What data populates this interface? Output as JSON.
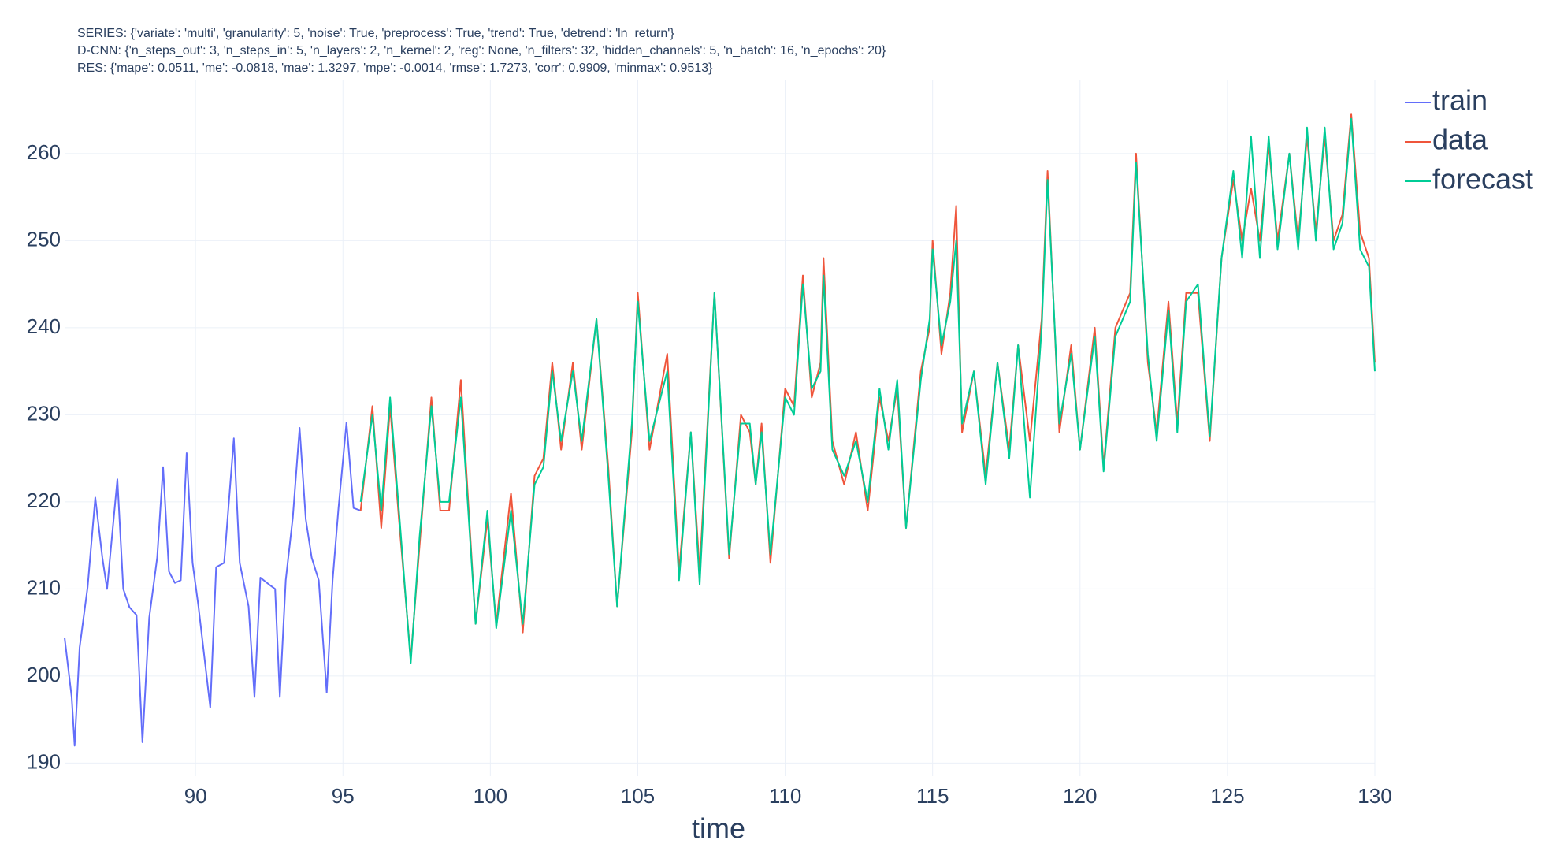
{
  "chart_data": {
    "type": "line",
    "title": [
      "SERIES: {'variate': 'multi', 'granularity': 5, 'noise': True, 'preprocess': True, 'trend': True, 'detrend': 'ln_return'}",
      "D-CNN: {'n_steps_out': 3, 'n_steps_in': 5, 'n_layers': 2, 'n_kernel': 2, 'reg': None, 'n_filters': 32, 'hidden_channels': 5, 'n_batch': 16, 'n_epochs': 20}",
      "RES: {'mape': 0.0511, 'me': -0.0818, 'mae': 1.3297, 'mpe': -0.0014, 'rmse': 1.7273, 'corr': 0.9909, 'minmax': 0.9513}"
    ],
    "x_label": "time",
    "xlim": [
      85.56,
      130
    ],
    "xticks": [
      90,
      95,
      100,
      105,
      110,
      115,
      120,
      125,
      130
    ],
    "ylim": [
      188.5,
      268.5
    ],
    "yticks": [
      190,
      200,
      210,
      220,
      230,
      240,
      250,
      260
    ],
    "grid": true,
    "legend": "right",
    "series": [
      {
        "name": "train",
        "color": "#636efa",
        "x": [
          85.56,
          85.8,
          85.9,
          86.07,
          86.34,
          86.6,
          86.84,
          87.0,
          87.35,
          87.55,
          87.76,
          88.0,
          88.2,
          88.43,
          88.7,
          88.9,
          89.1,
          89.3,
          89.5,
          89.7,
          89.9,
          90.1,
          90.3,
          90.5,
          90.7,
          90.97,
          91.3,
          91.5,
          91.8,
          92.0,
          92.2,
          92.5,
          92.7,
          92.86,
          93.06,
          93.3,
          93.53,
          93.74,
          93.94,
          94.18,
          94.45,
          94.65,
          94.85,
          95.12,
          95.36,
          95.6
        ],
        "values": [
          204.4,
          197.6,
          192,
          203.3,
          210.2,
          220.5,
          213.6,
          210,
          222.6,
          210,
          207.9,
          207,
          192.4,
          206.7,
          213.6,
          224,
          212,
          210.7,
          211,
          225.6,
          213,
          208,
          202.2,
          196.4,
          212.5,
          213,
          227.3,
          213,
          208,
          197.6,
          211.3,
          210.5,
          210,
          197.6,
          211,
          218.2,
          228.5,
          218,
          213.6,
          211,
          198.1,
          211,
          219.3,
          229.1,
          219.3,
          219
        ]
      },
      {
        "name": "data",
        "color": "#ef553b",
        "x": [
          95.6,
          96.0,
          96.3,
          96.6,
          96.9,
          97.3,
          97.6,
          98.0,
          98.3,
          98.6,
          99.0,
          99.5,
          99.9,
          100.2,
          100.7,
          101.1,
          101.5,
          101.8,
          102.1,
          102.4,
          102.8,
          103.1,
          103.6,
          104.0,
          104.3,
          104.8,
          105.0,
          105.4,
          106.0,
          106.4,
          106.8,
          107.1,
          107.6,
          108.1,
          108.5,
          108.8,
          109.0,
          109.2,
          109.5,
          110.0,
          110.3,
          110.6,
          110.9,
          111.2,
          111.3,
          111.6,
          112.0,
          112.4,
          112.8,
          113.2,
          113.5,
          113.8,
          114.1,
          114.6,
          114.9,
          115.0,
          115.3,
          115.6,
          115.8,
          116.0,
          116.4,
          116.8,
          117.2,
          117.6,
          117.9,
          118.3,
          118.7,
          118.9,
          119.3,
          119.7,
          120.0,
          120.5,
          120.8,
          121.2,
          121.7,
          121.9,
          122.3,
          122.6,
          123.0,
          123.3,
          123.6,
          124.0,
          124.4,
          124.8,
          125.2,
          125.5,
          125.8,
          126.1,
          126.4,
          126.7,
          127.1,
          127.4,
          127.7,
          128.0,
          128.3,
          128.6,
          128.9,
          129.2,
          129.5,
          129.8,
          130.0
        ],
        "values": [
          219,
          231,
          217,
          231,
          218,
          202,
          215,
          232,
          219,
          219,
          234,
          206,
          218,
          206,
          221,
          205,
          223,
          225,
          236,
          226,
          236,
          226,
          241,
          224,
          208,
          228,
          244,
          226,
          237,
          212,
          228,
          212,
          244,
          213.5,
          230,
          228,
          222,
          229,
          213,
          233,
          231,
          246,
          232,
          236,
          248,
          227,
          222,
          228,
          219,
          232,
          227,
          233,
          217,
          235,
          240,
          250,
          237,
          244,
          254,
          228,
          235,
          223,
          236,
          226,
          238,
          227,
          241,
          258,
          228,
          238,
          226,
          240,
          224,
          240,
          244,
          260,
          236,
          228,
          243,
          229,
          244,
          244,
          227,
          248,
          257,
          250,
          256,
          250,
          261,
          250,
          260,
          250,
          262,
          251,
          262,
          250,
          253,
          264.5,
          251,
          248,
          236
        ]
      },
      {
        "name": "forecast",
        "color": "#00cc96",
        "x": [
          95.6,
          96.0,
          96.3,
          96.6,
          96.9,
          97.3,
          97.6,
          98.0,
          98.3,
          98.6,
          99.0,
          99.5,
          99.9,
          100.2,
          100.7,
          101.1,
          101.5,
          101.8,
          102.1,
          102.4,
          102.8,
          103.1,
          103.6,
          104.0,
          104.3,
          104.8,
          105.0,
          105.4,
          106.0,
          106.4,
          106.8,
          107.1,
          107.6,
          108.1,
          108.5,
          108.8,
          109.0,
          109.2,
          109.5,
          110.0,
          110.3,
          110.6,
          110.9,
          111.2,
          111.3,
          111.6,
          112.0,
          112.4,
          112.8,
          113.2,
          113.5,
          113.8,
          114.1,
          114.6,
          114.9,
          115.0,
          115.3,
          115.6,
          115.8,
          116.0,
          116.4,
          116.8,
          117.2,
          117.6,
          117.9,
          118.3,
          118.7,
          118.9,
          119.3,
          119.7,
          120.0,
          120.5,
          120.8,
          121.2,
          121.7,
          121.9,
          122.3,
          122.6,
          123.0,
          123.3,
          123.6,
          124.0,
          124.4,
          124.8,
          125.2,
          125.5,
          125.8,
          126.1,
          126.4,
          126.7,
          127.1,
          127.4,
          127.7,
          128.0,
          128.3,
          128.6,
          128.9,
          129.2,
          129.5,
          129.8,
          130.0
        ],
        "values": [
          220,
          230,
          219,
          232,
          219,
          201.5,
          216,
          231,
          220,
          220,
          232,
          206,
          219,
          205.5,
          219,
          206,
          222,
          224,
          235,
          227,
          235,
          227,
          241,
          223,
          208,
          229,
          243,
          227,
          235,
          211,
          228,
          210.5,
          244,
          214,
          229,
          229,
          222,
          228,
          214,
          232,
          230,
          245,
          233,
          235,
          246,
          226,
          223,
          227,
          220,
          233,
          226,
          234,
          217,
          234,
          241,
          249,
          238,
          243,
          250,
          229,
          235,
          222,
          236,
          225,
          238,
          220.5,
          240,
          257,
          229,
          237,
          226,
          239,
          223.5,
          239,
          243,
          259,
          237,
          227,
          242,
          228,
          243,
          245,
          227.5,
          248,
          258,
          248,
          262,
          248,
          262,
          249,
          260,
          249,
          263,
          250,
          263,
          249,
          252,
          264,
          249,
          247,
          235
        ]
      }
    ]
  }
}
